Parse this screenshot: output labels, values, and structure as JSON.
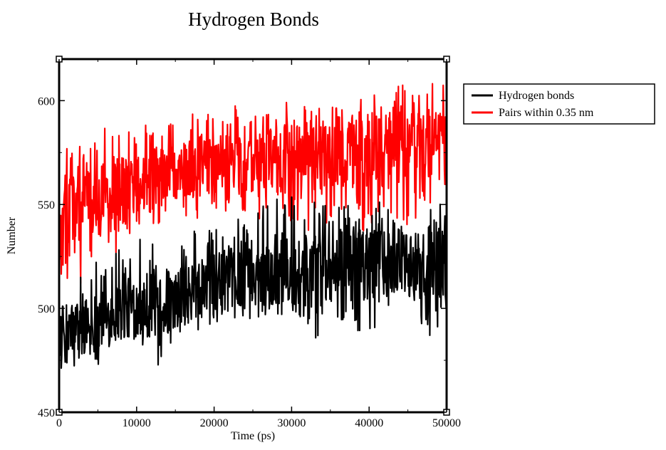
{
  "chart_data": {
    "type": "line",
    "title": "Hydrogen Bonds",
    "xlabel": "Time (ps)",
    "ylabel": "Number",
    "xlim": [
      0,
      50000
    ],
    "ylim": [
      450,
      620
    ],
    "xticks": [
      0,
      10000,
      20000,
      30000,
      40000,
      50000
    ],
    "yticks": [
      450,
      500,
      550,
      600
    ],
    "grid": false,
    "legend_position": "top-right outside",
    "series": [
      {
        "name": "Hydrogen bonds",
        "color": "#000000",
        "x": [
          0,
          2500,
          5000,
          7500,
          10000,
          12500,
          15000,
          17500,
          20000,
          22500,
          25000,
          27500,
          30000,
          32500,
          35000,
          37500,
          40000,
          42500,
          45000,
          47500,
          50000
        ],
        "values": [
          488,
          491,
          494,
          498,
          501,
          503,
          504,
          508,
          512,
          515,
          516,
          517,
          518,
          518,
          519,
          520,
          520,
          521,
          521,
          522,
          523
        ],
        "y_range_min": [
          460,
          470,
          472,
          475,
          480,
          470,
          485,
          488,
          490,
          492,
          495,
          496,
          497,
          482,
          494,
          490,
          485,
          496,
          492,
          484,
          496
        ],
        "y_range_max": [
          510,
          518,
          525,
          530,
          533,
          535,
          538,
          540,
          542,
          545,
          548,
          552,
          555,
          551,
          552,
          550,
          553,
          550,
          548,
          551,
          550
        ]
      },
      {
        "name": "Pairs within 0.35 nm",
        "color": "#ff0000",
        "x": [
          0,
          2500,
          5000,
          7500,
          10000,
          12500,
          15000,
          17500,
          20000,
          22500,
          25000,
          27500,
          30000,
          32500,
          35000,
          37500,
          40000,
          42500,
          45000,
          47500,
          50000
        ],
        "values": [
          545,
          548,
          551,
          555,
          559,
          563,
          565,
          568,
          570,
          571,
          571,
          572,
          573,
          573,
          574,
          575,
          576,
          577,
          578,
          579,
          581
        ],
        "y_range_min": [
          515,
          498,
          520,
          525,
          540,
          540,
          545,
          543,
          545,
          548,
          540,
          545,
          540,
          535,
          542,
          542,
          535,
          545,
          538,
          550,
          555
        ],
        "y_range_max": [
          580,
          578,
          585,
          590,
          592,
          595,
          590,
          596,
          598,
          599,
          594,
          597,
          600,
          596,
          601,
          605,
          611,
          606,
          608,
          608,
          610
        ]
      }
    ]
  }
}
